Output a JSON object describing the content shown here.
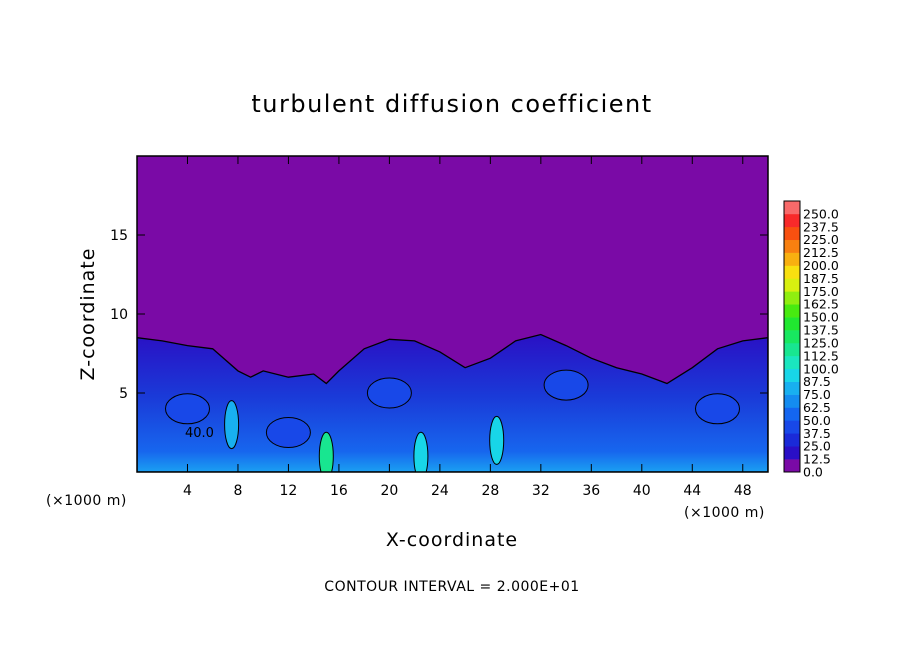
{
  "chart_data": {
    "type": "heatmap",
    "title": "turbulent diffusion coefficient",
    "xlabel": "X-coordinate",
    "ylabel": "Z-coordinate",
    "x_unit_label": "(×1000 m)",
    "x_unit_label_right": "(×1000 m)",
    "xlim": [
      0,
      50
    ],
    "ylim": [
      0,
      20
    ],
    "x_ticks": [
      4,
      8,
      12,
      16,
      20,
      24,
      28,
      32,
      36,
      40,
      44,
      48
    ],
    "x_tick_labels": [
      "4",
      "8",
      "12",
      "16",
      "20",
      "24",
      "28",
      "32",
      "36",
      "40",
      "44",
      "48"
    ],
    "y_ticks": [
      5,
      10,
      15
    ],
    "y_tick_labels": [
      "5",
      "10",
      "15"
    ],
    "contour_note": "CONTOUR INTERVAL = 2.000E+01",
    "contour_label": "40.0",
    "contour_label_x": 3.8,
    "contour_label_z": 2.2,
    "colorbar": {
      "levels": [
        "0.0",
        "12.5",
        "25.0",
        "37.5",
        "50.0",
        "62.5",
        "75.0",
        "87.5",
        "100.0",
        "112.5",
        "125.0",
        "137.5",
        "150.0",
        "162.5",
        "175.0",
        "187.5",
        "200.0",
        "212.5",
        "225.0",
        "237.5",
        "250.0"
      ],
      "colors": [
        "#7a0aa6",
        "#2a0fc6",
        "#1a2ad8",
        "#1848e8",
        "#1466f0",
        "#148cf0",
        "#18b0f0",
        "#18d6e8",
        "#1ae6bf",
        "#18e690",
        "#18e860",
        "#20e830",
        "#48ea10",
        "#90ee10",
        "#d8f010",
        "#f8e010",
        "#f8b010",
        "#f88010",
        "#f85010",
        "#f82a2a",
        "#f86a6a"
      ]
    },
    "field": {
      "background_value": 0.0,
      "turbulent_layer_top_profile": [
        [
          0,
          8.5
        ],
        [
          2,
          8.3
        ],
        [
          4,
          8.0
        ],
        [
          6,
          7.8
        ],
        [
          8,
          6.4
        ],
        [
          9,
          6.0
        ],
        [
          10,
          6.4
        ],
        [
          12,
          6.0
        ],
        [
          14,
          6.2
        ],
        [
          15,
          5.6
        ],
        [
          16,
          6.4
        ],
        [
          18,
          7.8
        ],
        [
          20,
          8.4
        ],
        [
          22,
          8.3
        ],
        [
          24,
          7.6
        ],
        [
          26,
          6.6
        ],
        [
          28,
          7.2
        ],
        [
          30,
          8.3
        ],
        [
          32,
          8.7
        ],
        [
          34,
          8.0
        ],
        [
          36,
          7.2
        ],
        [
          38,
          6.6
        ],
        [
          40,
          6.2
        ],
        [
          42,
          5.6
        ],
        [
          44,
          6.6
        ],
        [
          46,
          7.8
        ],
        [
          48,
          8.3
        ],
        [
          50,
          8.5
        ]
      ],
      "cells": [
        {
          "x": 4,
          "z": 4.0,
          "value": 37.5
        },
        {
          "x": 12,
          "z": 2.5,
          "value": 37.5
        },
        {
          "x": 20,
          "z": 5.0,
          "value": 37.5
        },
        {
          "x": 34,
          "z": 5.5,
          "value": 37.5
        },
        {
          "x": 46,
          "z": 4.0,
          "value": 37.5
        },
        {
          "x": 7.5,
          "z": 3.0,
          "value": 75.0
        },
        {
          "x": 15,
          "z": 1.0,
          "value": 112.5
        },
        {
          "x": 22.5,
          "z": 1.0,
          "value": 87.5
        },
        {
          "x": 28.5,
          "z": 2.0,
          "value": 87.5
        }
      ]
    }
  }
}
